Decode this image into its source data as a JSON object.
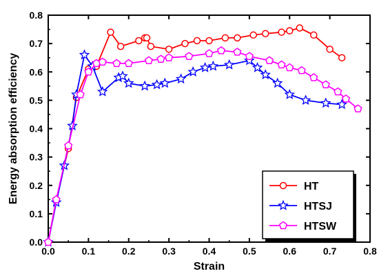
{
  "chart_data": {
    "type": "line",
    "xlabel": "Strain",
    "ylabel": "Energy absorption efficiency",
    "xlim": [
      0.0,
      0.8
    ],
    "ylim": [
      0.0,
      0.8
    ],
    "xticks": [
      0.0,
      0.1,
      0.2,
      0.3,
      0.4,
      0.5,
      0.6,
      0.7,
      0.8
    ],
    "yticks": [
      0.0,
      0.1,
      0.2,
      0.3,
      0.4,
      0.5,
      0.6,
      0.7,
      0.8
    ],
    "xtick_labels": [
      "0.0",
      "0.1",
      "0.2",
      "0.3",
      "0.4",
      "0.5",
      "0.6",
      "0.7",
      "0.8"
    ],
    "ytick_labels": [
      "0.0",
      "0.1",
      "0.2",
      "0.3",
      "0.4",
      "0.5",
      "0.6",
      "0.7",
      "0.8"
    ],
    "grid": false,
    "legend_position": "bottom-right",
    "series": [
      {
        "name": "HT",
        "color": "#ff0000",
        "marker": "circle",
        "x": [
          0.0,
          0.02,
          0.05,
          0.07,
          0.1,
          0.12,
          0.155,
          0.18,
          0.225,
          0.24,
          0.245,
          0.255,
          0.3,
          0.34,
          0.37,
          0.4,
          0.44,
          0.47,
          0.51,
          0.54,
          0.58,
          0.6,
          0.625,
          0.66,
          0.7,
          0.73
        ],
        "values": [
          0.0,
          0.15,
          0.33,
          0.51,
          0.61,
          0.62,
          0.74,
          0.69,
          0.71,
          0.72,
          0.72,
          0.69,
          0.68,
          0.7,
          0.71,
          0.71,
          0.72,
          0.72,
          0.73,
          0.735,
          0.74,
          0.745,
          0.755,
          0.73,
          0.68,
          0.65
        ]
      },
      {
        "name": "HTSJ",
        "color": "#0000ff",
        "marker": "star",
        "x": [
          0.0,
          0.02,
          0.04,
          0.06,
          0.07,
          0.09,
          0.11,
          0.135,
          0.175,
          0.185,
          0.2,
          0.24,
          0.27,
          0.29,
          0.33,
          0.36,
          0.39,
          0.41,
          0.45,
          0.5,
          0.52,
          0.54,
          0.57,
          0.6,
          0.64,
          0.69,
          0.73
        ],
        "values": [
          0.0,
          0.14,
          0.27,
          0.41,
          0.52,
          0.66,
          0.62,
          0.53,
          0.58,
          0.585,
          0.56,
          0.55,
          0.555,
          0.56,
          0.575,
          0.6,
          0.615,
          0.62,
          0.625,
          0.64,
          0.615,
          0.59,
          0.56,
          0.52,
          0.5,
          0.49,
          0.485
        ]
      },
      {
        "name": "HTSW",
        "color": "#ff00ff",
        "marker": "pentagon",
        "x": [
          0.0,
          0.02,
          0.05,
          0.08,
          0.1,
          0.12,
          0.135,
          0.17,
          0.2,
          0.25,
          0.28,
          0.3,
          0.35,
          0.4,
          0.43,
          0.47,
          0.5,
          0.55,
          0.58,
          0.6,
          0.63,
          0.66,
          0.69,
          0.72,
          0.74,
          0.77
        ],
        "values": [
          0.0,
          0.15,
          0.34,
          0.52,
          0.6,
          0.63,
          0.635,
          0.63,
          0.63,
          0.64,
          0.645,
          0.65,
          0.655,
          0.665,
          0.675,
          0.67,
          0.655,
          0.64,
          0.625,
          0.615,
          0.605,
          0.58,
          0.555,
          0.53,
          0.505,
          0.47
        ]
      }
    ]
  }
}
